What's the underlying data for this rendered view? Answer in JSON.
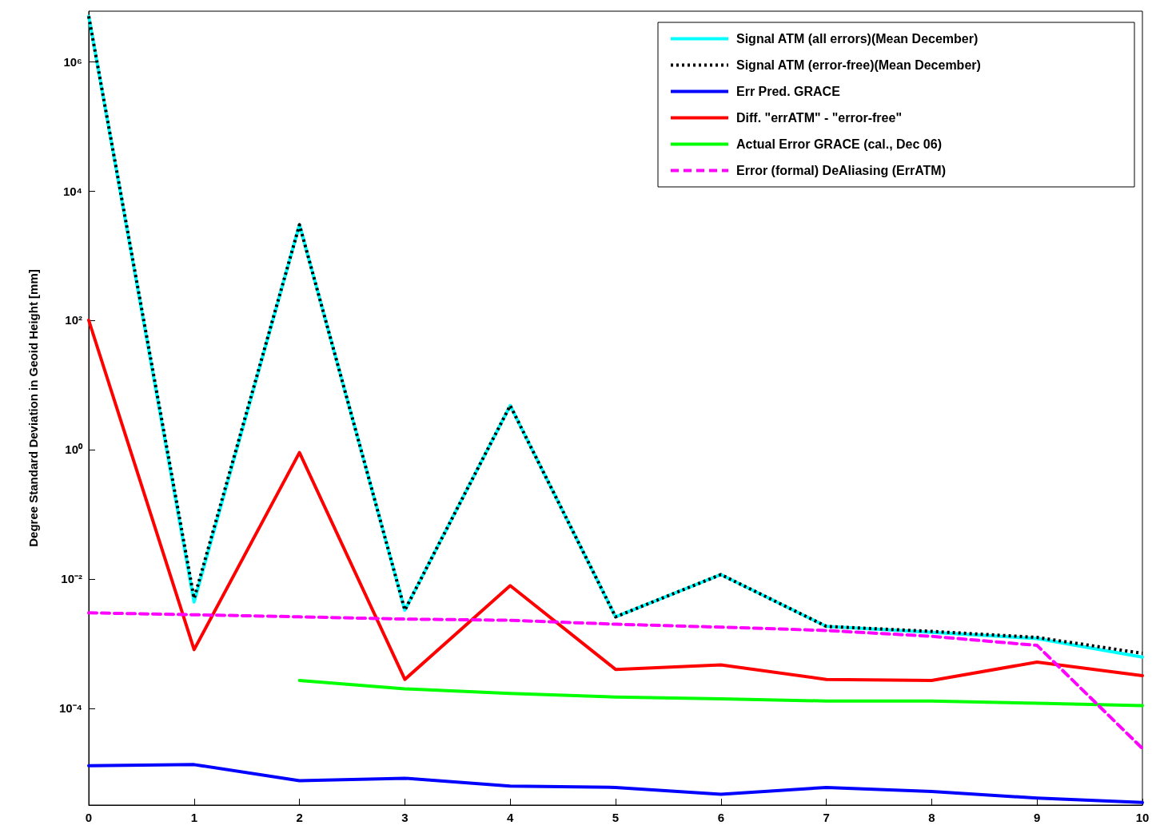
{
  "chart_data": {
    "type": "line",
    "ylabel": "Degree Standard Deviation in Geoid Height [mm]",
    "x": [
      0,
      1,
      2,
      3,
      4,
      5,
      6,
      7,
      8,
      9,
      10
    ],
    "xlim": [
      0,
      10
    ],
    "xticks": [
      0,
      1,
      2,
      3,
      4,
      5,
      6,
      7,
      8,
      9,
      10
    ],
    "log": "y",
    "ylim": [
      3.2e-06,
      6000000.0
    ],
    "yticks": [
      {
        "value": 0.0001,
        "label": "10⁻⁴"
      },
      {
        "value": 0.01,
        "label": "10⁻²"
      },
      {
        "value": 1,
        "label": "10⁰"
      },
      {
        "value": 100,
        "label": "10²"
      },
      {
        "value": 10000,
        "label": "10⁴"
      },
      {
        "value": 1000000,
        "label": "10⁶"
      }
    ],
    "grid": false,
    "legend": "top right",
    "marker": "none",
    "series": [
      {
        "name": "Signal ATM (all errors)(Mean December)",
        "color": "#00ffff",
        "line_style": "solid",
        "values": [
          5000000,
          0.0044,
          3000,
          0.0033,
          4.8,
          0.0026,
          0.0117,
          0.00185,
          0.0015,
          0.0012,
          0.00062
        ]
      },
      {
        "name": "Signal ATM (error-free)(Mean December)",
        "color": "#000000",
        "line_style": "dotted",
        "values": [
          5000000,
          0.005,
          3000,
          0.0033,
          4.8,
          0.0026,
          0.0117,
          0.00185,
          0.00155,
          0.00125,
          0.00071
        ]
      },
      {
        "name": "Err Pred. GRACE",
        "color": "#0000ff",
        "line_style": "solid",
        "values": [
          1.3e-05,
          1.35e-05,
          7.6e-06,
          8.3e-06,
          6.3e-06,
          6e-06,
          4.7e-06,
          6e-06,
          5.2e-06,
          4.1e-06,
          3.5e-06
        ]
      },
      {
        "name": "Diff. \"errATM\" - \"error-free\"",
        "color": "#ff0000",
        "line_style": "solid",
        "values": [
          100,
          0.00081,
          0.9,
          0.00028,
          0.0079,
          0.0004,
          0.00047,
          0.00028,
          0.00027,
          0.00052,
          0.00032
        ]
      },
      {
        "name": "Actual Error GRACE (cal., Dec 06)",
        "color": "#00ff00",
        "line_style": "solid",
        "x": [
          2,
          3,
          4,
          5,
          6,
          7,
          8,
          9,
          10
        ],
        "values": [
          0.00027,
          0.0002,
          0.00017,
          0.00015,
          0.00014,
          0.00013,
          0.00013,
          0.00012,
          0.00011
        ]
      },
      {
        "name": "Error (formal) DeAliasing (ErrATM)",
        "color": "#ff00ff",
        "line_style": "dashed",
        "values": [
          0.003,
          0.0028,
          0.0026,
          0.0024,
          0.0023,
          0.002,
          0.0018,
          0.0016,
          0.0013,
          0.00094,
          2.4e-05
        ]
      }
    ]
  }
}
